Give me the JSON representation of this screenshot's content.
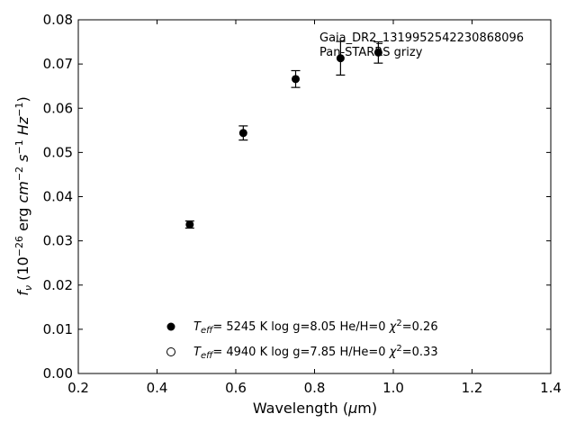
{
  "chart_data": {
    "type": "scatter",
    "xlabel": "Wavelength (μm)",
    "ylabel": "f_ν (10^-26 erg cm^-2 s^-1 Hz^-1)",
    "xlim": [
      0.2,
      1.4
    ],
    "ylim": [
      0.0,
      0.08
    ],
    "xticks": [
      "0.2",
      "0.4",
      "0.6",
      "0.8",
      "1.0",
      "1.2",
      "1.4"
    ],
    "yticks": [
      "0.00",
      "0.01",
      "0.02",
      "0.03",
      "0.04",
      "0.05",
      "0.06",
      "0.07",
      "0.08"
    ],
    "grid": false,
    "annotation": [
      "Gaia_DR2_1319952542230868096",
      "Pan-STARRS grizy"
    ],
    "series": [
      {
        "marker": "filled-circle",
        "color": "#000000",
        "points": [
          {
            "x": 0.483,
            "y": 0.0337,
            "err": 0.0008
          },
          {
            "x": 0.619,
            "y": 0.0544,
            "err": 0.0016
          },
          {
            "x": 0.752,
            "y": 0.0666,
            "err": 0.0019
          },
          {
            "x": 0.866,
            "y": 0.0713,
            "err": 0.0038
          },
          {
            "x": 0.962,
            "y": 0.0726,
            "err": 0.0024
          }
        ]
      }
    ],
    "legend": {
      "placement": "lower-center",
      "entries": [
        {
          "marker": "filled-circle",
          "teff": "5245 K",
          "logg": "log g=8.05",
          "comp": "He/H=0",
          "chi2": "=0.26"
        },
        {
          "marker": "open-circle",
          "teff": "4940 K",
          "logg": "log g=7.85",
          "comp": "H/He=0",
          "chi2": "=0.33"
        }
      ]
    }
  }
}
